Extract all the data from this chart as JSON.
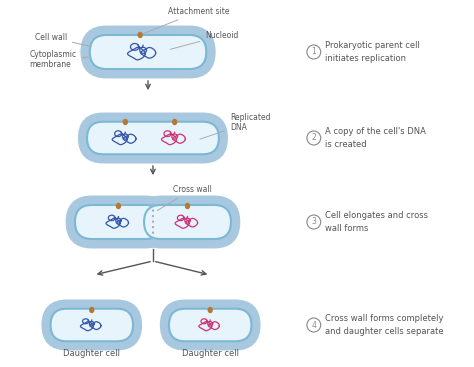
{
  "bg_color": "#ffffff",
  "cell_outer_color": "#a8c8e0",
  "cell_inner_color": "#e8f4fb",
  "cell_border_color": "#7ab8d4",
  "dna_blue_color": "#3355aa",
  "dna_pink_color": "#cc3377",
  "attachment_color": "#b87830",
  "arrow_color": "#555555",
  "text_color": "#555555",
  "circle_color": "#888888",
  "label_fontsize": 5.5,
  "step_fontsize": 6.0,
  "steps": [
    "Prokaryotic parent cell\ninitiates replication",
    "A copy of the cell's DNA\nis created",
    "Cell elongates and cross\nwall forms",
    "Cross wall forms completely\nand daughter cells separate"
  ]
}
